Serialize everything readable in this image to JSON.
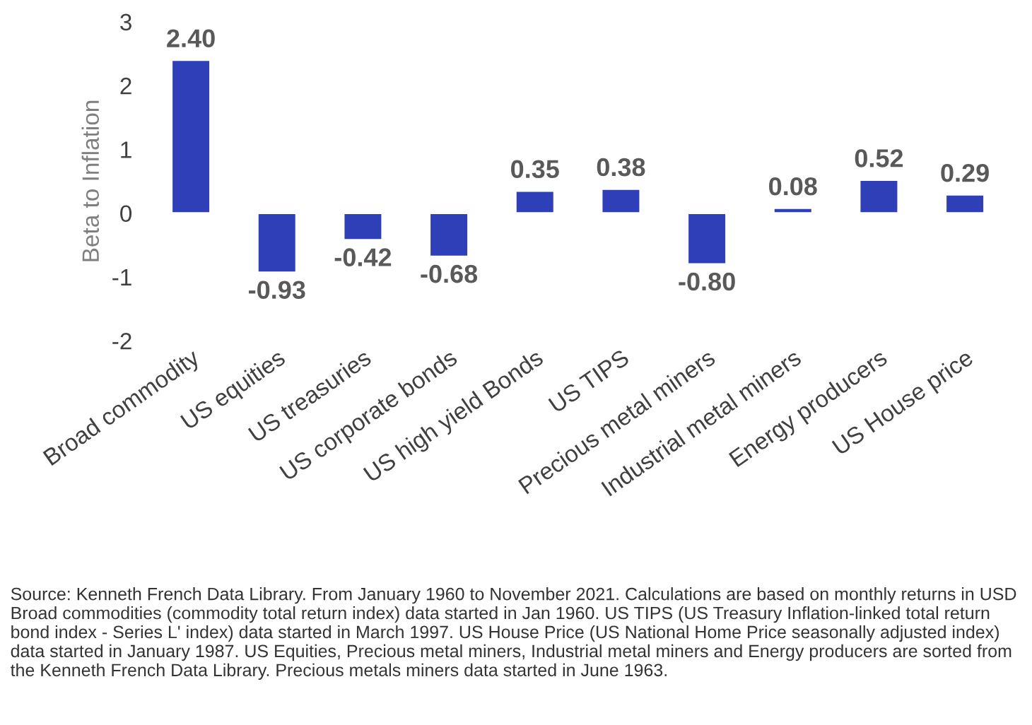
{
  "chart_data": {
    "type": "bar",
    "ylabel": "Beta to Inflation",
    "categories": [
      "Broad commodity",
      "US equities",
      "US treasuries",
      "US corporate bonds",
      "US high yield Bonds",
      "US TIPS",
      "Precious metal miners",
      "Industrial metal miners",
      "Energy producers",
      "US House price"
    ],
    "values": [
      2.4,
      -0.93,
      -0.42,
      -0.68,
      0.35,
      0.38,
      -0.8,
      0.08,
      0.52,
      0.29
    ],
    "value_labels": [
      "2.40",
      "-0.93",
      "-0.42",
      "-0.68",
      "0.35",
      "0.38",
      "-0.80",
      "0.08",
      "0.52",
      "0.29"
    ],
    "color": "#2f3fb8",
    "ylim": [
      -2,
      3
    ],
    "yticks": [
      -2,
      -1,
      0,
      1,
      2,
      3
    ],
    "grid": false,
    "annotations": [
      "Source: Kenneth French Data Library. From January 1960 to November 2021. Calculations are based on monthly returns in USD Broad commodities (commodity total return index) data started in Jan 1960. US TIPS (US Treasury Inflation-linked total return bond index - Series L' index) data started in March 1997. US House Price (US National Home Price seasonally adjusted index) data started in January 1987. US Equities, Precious metal miners, Industrial metal miners and Energy producers are sorted from the Kenneth French Data Library. Precious metals miners data started in June 1963."
    ]
  }
}
